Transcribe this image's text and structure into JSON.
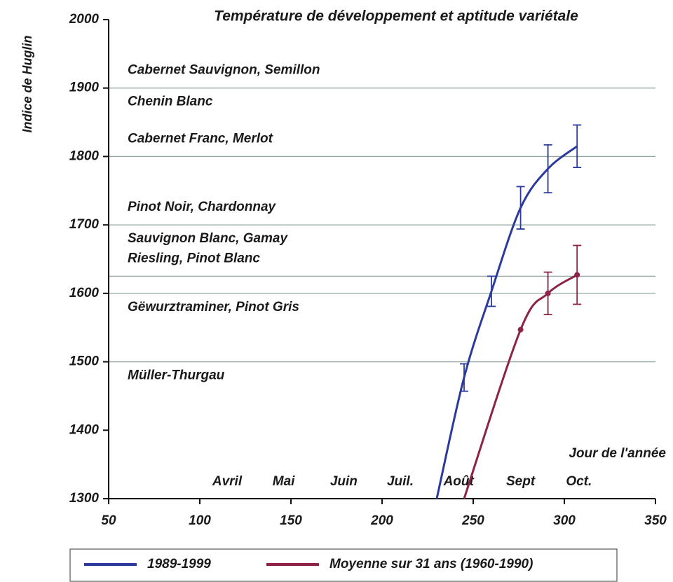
{
  "chart_data": {
    "type": "line",
    "title": "Température de développement et aptitude variétale",
    "y_label": "Indice de Huglin",
    "x_label": "Jour de l'année",
    "xlim": [
      50,
      350
    ],
    "xticks": [
      50,
      100,
      150,
      200,
      250,
      300,
      350
    ],
    "ylim": [
      1300,
      2000
    ],
    "yticks": [
      1300,
      1400,
      1500,
      1600,
      1700,
      1800,
      1900,
      2000
    ],
    "month_labels": [
      {
        "label": "Avril",
        "x": 115
      },
      {
        "label": "Mai",
        "x": 146
      },
      {
        "label": "Juin",
        "x": 179
      },
      {
        "label": "Juil.",
        "x": 210
      },
      {
        "label": "Août",
        "x": 242
      },
      {
        "label": "Sept",
        "x": 276
      },
      {
        "label": "Oct.",
        "x": 308
      }
    ],
    "reference_lines": [
      {
        "value": 1900,
        "above": "Cabernet Sauvignon, Semillon",
        "below": "Chenin Blanc"
      },
      {
        "value": 1800,
        "above": "Cabernet Franc, Merlot"
      },
      {
        "value": 1700,
        "above": "Pinot Noir, Chardonnay",
        "below": "Sauvignon Blanc, Gamay"
      },
      {
        "value": 1625,
        "above": "Riesling, Pinot Blanc"
      },
      {
        "value": 1600,
        "below": "Gëwurztraminer, Pinot Gris"
      },
      {
        "value": 1500,
        "below": "Müller-Thurgau"
      }
    ],
    "series": [
      {
        "name": "1989-1999",
        "color": "#2b3a9c",
        "x": [
          230,
          245,
          260,
          276,
          291,
          307
        ],
        "values": [
          1300,
          1477,
          1603,
          1725,
          1782,
          1815
        ],
        "errors": [
          null,
          20,
          22,
          31,
          35,
          31
        ],
        "markers": [
          false,
          false,
          false,
          false,
          false,
          false
        ]
      },
      {
        "name": "Moyenne sur 31 ans (1960-1990)",
        "color": "#8c2445",
        "x": [
          245,
          276,
          291,
          307
        ],
        "values": [
          1300,
          1547,
          1600,
          1627
        ],
        "errors": [
          null,
          null,
          31,
          43
        ],
        "markers": [
          false,
          true,
          true,
          true
        ]
      }
    ]
  }
}
